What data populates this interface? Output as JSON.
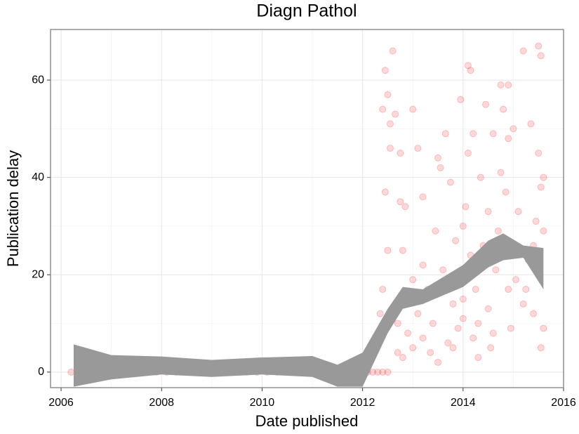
{
  "chart_data": {
    "type": "scatter",
    "title": "Diagn Pathol",
    "x_label": "Date published",
    "y_label": "Publication delay",
    "xlim": [
      2005.79,
      2016.0
    ],
    "ylim": [
      -3.2,
      70.4
    ],
    "xticks": [
      2006,
      2008,
      2010,
      2012,
      2014,
      2016
    ],
    "yticks": [
      0,
      20,
      40,
      60
    ],
    "x_minor_grid": [
      2007,
      2009,
      2011,
      2013,
      2015
    ],
    "y_minor_grid": [
      10,
      30,
      50,
      70
    ],
    "grid": true,
    "point_color": "#ff0000",
    "point_opacity": 0.15,
    "ribbon_color": "#999999",
    "x": [
      2006.2,
      2006.35,
      2006.6,
      2006.75,
      2006.9,
      2007.1,
      2007.3,
      2007.5,
      2007.7,
      2007.9,
      2008.1,
      2008.3,
      2008.5,
      2008.7,
      2008.9,
      2009.1,
      2009.3,
      2009.5,
      2009.7,
      2009.9,
      2010.1,
      2010.3,
      2010.5,
      2010.7,
      2010.9,
      2011.1,
      2011.3,
      2011.5,
      2011.7,
      2011.9,
      2012.0,
      2012.1,
      2012.2,
      2012.3,
      2012.4,
      2012.5,
      2012.3,
      2012.35,
      2012.4,
      2012.4,
      2012.45,
      2012.45,
      2012.5,
      2012.5,
      2012.55,
      2012.55,
      2012.6,
      2012.65,
      2012.7,
      2012.7,
      2012.75,
      2012.75,
      2012.8,
      2012.8,
      2012.85,
      2012.9,
      2012.95,
      2013.0,
      2013.0,
      2013.1,
      2013.1,
      2013.2,
      2013.2,
      2013.3,
      2013.35,
      2013.4,
      2013.45,
      2013.5,
      2013.55,
      2013.6,
      2013.65,
      2013.7,
      2013.75,
      2013.8,
      2013.85,
      2013.9,
      2013.95,
      2014.0,
      2014.0,
      2014.05,
      2014.1,
      2014.1,
      2014.15,
      2014.15,
      2014.2,
      2014.2,
      2014.25,
      2014.3,
      2014.35,
      2014.4,
      2014.45,
      2014.5,
      2014.5,
      2014.55,
      2014.6,
      2014.65,
      2014.7,
      2014.75,
      2014.75,
      2014.8,
      2014.85,
      2014.9,
      2014.9,
      2014.95,
      2015.0,
      2015.05,
      2015.1,
      2015.2,
      2015.25,
      2015.3,
      2015.35,
      2015.4,
      2015.45,
      2015.5,
      2015.5,
      2015.55,
      2015.55,
      2015.55,
      2015.6,
      2015.6,
      2015.6,
      2013.0,
      2013.2,
      2013.5,
      2013.8,
      2014.0,
      2014.3,
      2014.6,
      2014.9,
      2015.2,
      2015.4
    ],
    "y": [
      0,
      0,
      0,
      0,
      0,
      0,
      0,
      0,
      0,
      0,
      0,
      0,
      0,
      0,
      0,
      0,
      0,
      0,
      0,
      0,
      0,
      0,
      0,
      0,
      0,
      0,
      0,
      0,
      0,
      0,
      0,
      0,
      0,
      0,
      0,
      0,
      7,
      12,
      17,
      54,
      62,
      37,
      57,
      25,
      46,
      51,
      66,
      53,
      10,
      4,
      35,
      45,
      3,
      25,
      34,
      8,
      16,
      54,
      5,
      46,
      12,
      36,
      7,
      17,
      4,
      10,
      29,
      44,
      42,
      21,
      49,
      6,
      39,
      14,
      27,
      9,
      56,
      30,
      11,
      34,
      45,
      63,
      62,
      24,
      49,
      7,
      17,
      3,
      40,
      26,
      55,
      13,
      33,
      5,
      49,
      21,
      29,
      59,
      41,
      54,
      37,
      48,
      59,
      9,
      50,
      19,
      33,
      66,
      17,
      23,
      51,
      12,
      31,
      67,
      45,
      65,
      38,
      5,
      40,
      29,
      9,
      19,
      22,
      2,
      5,
      15,
      10,
      8,
      17,
      14,
      26
    ],
    "smooth": {
      "x": [
        2006.25,
        2007,
        2008,
        2009,
        2010,
        2011,
        2011.5,
        2012,
        2012.5,
        2012.8,
        2013.2,
        2014,
        2014.5,
        2014.8,
        2015.2,
        2015.6
      ],
      "lower": [
        -3,
        -1.5,
        -0.5,
        -1,
        -0.5,
        -1,
        -3,
        -3,
        8,
        13,
        14,
        17.5,
        21.5,
        23,
        23.5,
        17
      ],
      "upper": [
        5.7,
        3.5,
        3.2,
        2.5,
        3,
        3.3,
        1.5,
        4,
        13,
        17.5,
        17,
        22,
        27,
        28.5,
        26,
        25.5
      ]
    }
  }
}
